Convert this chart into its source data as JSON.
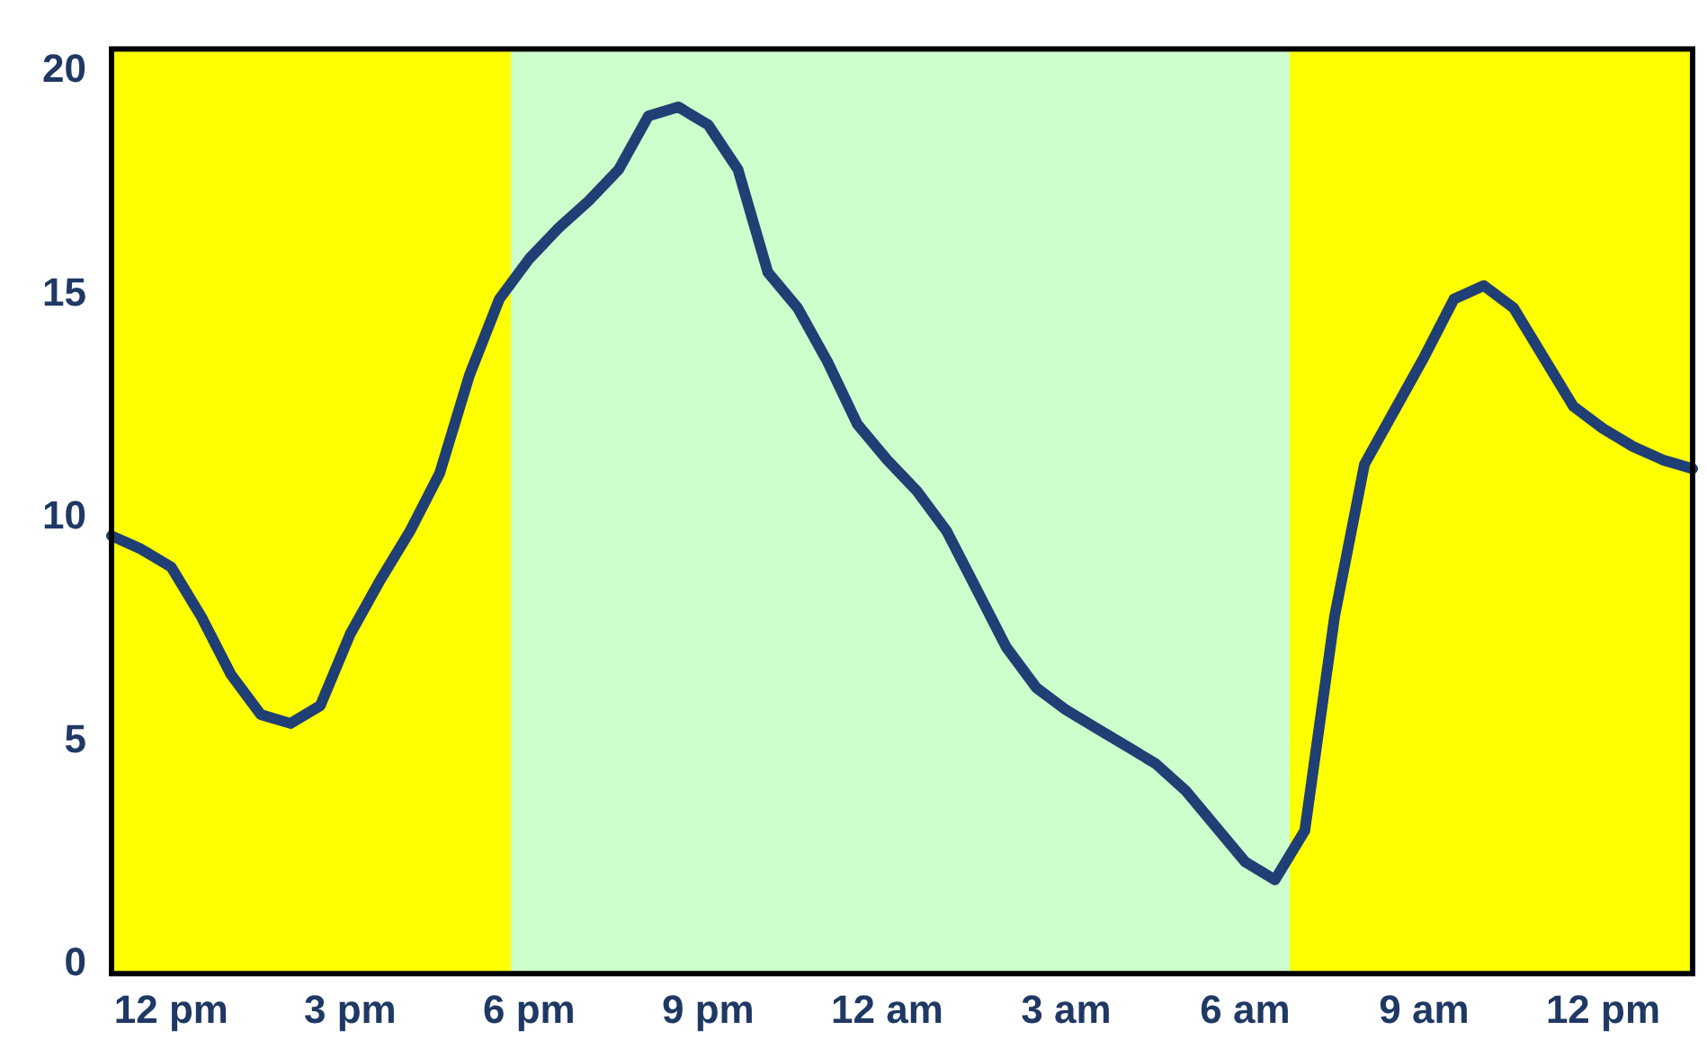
{
  "chart_data": {
    "type": "line",
    "categories": [
      null,
      null,
      "12 pm",
      null,
      null,
      null,
      null,
      null,
      "3 pm",
      null,
      null,
      null,
      null,
      null,
      "6 pm",
      null,
      null,
      null,
      null,
      null,
      "9 pm",
      null,
      null,
      null,
      null,
      null,
      "12 am",
      null,
      null,
      null,
      null,
      null,
      "3 am",
      null,
      null,
      null,
      null,
      null,
      "6 am",
      null,
      null,
      null,
      null,
      null,
      "9 am",
      null,
      null,
      null,
      null,
      null,
      "12 pm",
      null,
      null,
      null
    ],
    "series": [
      {
        "color": "#1f3f75",
        "values": [
          9.6,
          9.3,
          8.9,
          7.8,
          6.5,
          5.6,
          5.4,
          5.8,
          7.4,
          8.6,
          9.7,
          11.0,
          13.2,
          14.9,
          15.8,
          16.5,
          17.1,
          17.8,
          19.0,
          19.2,
          18.8,
          17.8,
          15.5,
          14.7,
          13.5,
          12.1,
          11.3,
          10.6,
          9.7,
          8.4,
          7.1,
          6.2,
          5.7,
          5.3,
          4.9,
          4.5,
          3.9,
          3.1,
          2.3,
          1.9,
          3.0,
          7.8,
          11.2,
          12.4,
          13.6,
          14.9,
          15.2,
          14.7,
          13.6,
          12.5,
          12.0,
          11.6,
          11.3,
          11.1
        ]
      }
    ],
    "ylim": [
      -0.2,
      20.5
    ],
    "yticks": [
      0,
      5,
      10,
      15,
      20
    ],
    "grid": false,
    "legend": false,
    "marker": "none",
    "line_style": "solid"
  }
}
